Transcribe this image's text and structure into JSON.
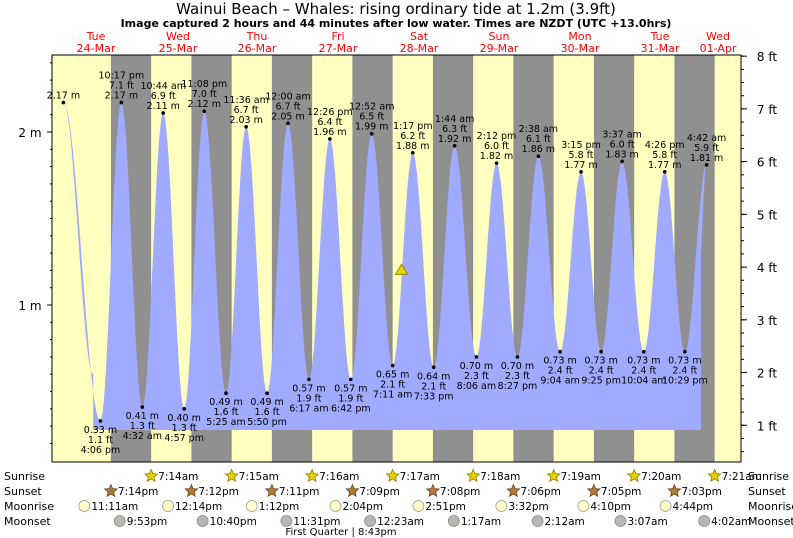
{
  "chart_data": {
    "type": "area",
    "title": "Wainui Beach – Whales: rising  ordinary tide at 1.2m (3.9ft)",
    "subtitle": "Image captured 2 hours and 44 minutes after low water. Times are NZDT (UTC +13.0hrs)",
    "left_axis": {
      "unit": "m",
      "ticks": [
        {
          "v": 1,
          "label": "1 m"
        },
        {
          "v": 2,
          "label": "2 m"
        }
      ]
    },
    "right_axis": {
      "unit": "ft",
      "ticks": [
        {
          "v": 1,
          "label": "1 ft"
        },
        {
          "v": 2,
          "label": "2 ft"
        },
        {
          "v": 3,
          "label": "3 ft"
        },
        {
          "v": 4,
          "label": "4 ft"
        },
        {
          "v": 5,
          "label": "5 ft"
        },
        {
          "v": 6,
          "label": "6 ft"
        },
        {
          "v": 7,
          "label": "7 ft"
        },
        {
          "v": 8,
          "label": "8 ft"
        }
      ]
    },
    "days": [
      {
        "dow": "Tue",
        "date": "24-Mar"
      },
      {
        "dow": "Wed",
        "date": "25-Mar"
      },
      {
        "dow": "Thu",
        "date": "26-Mar"
      },
      {
        "dow": "Fri",
        "date": "27-Mar"
      },
      {
        "dow": "Sat",
        "date": "28-Mar"
      },
      {
        "dow": "Sun",
        "date": "29-Mar"
      },
      {
        "dow": "Mon",
        "date": "30-Mar"
      },
      {
        "dow": "Tue",
        "date": "31-Mar"
      },
      {
        "dow": "Wed",
        "date": "01-Apr"
      }
    ],
    "tide_series": [
      {
        "type": "high",
        "time": "",
        "m": 2.17,
        "ft": "",
        "d": 0.21
      },
      {
        "type": "low",
        "time": "4:06 pm",
        "m": 0.33,
        "ft": "1.1 ft",
        "d": 0.67
      },
      {
        "type": "high",
        "time": "10:17 pm",
        "m": 2.17,
        "ft": "7.1 ft",
        "d": 0.93
      },
      {
        "type": "low",
        "time": "4:32 am",
        "m": 0.41,
        "ft": "1.3 ft",
        "d": 1.19
      },
      {
        "type": "high",
        "time": "10:44 am",
        "m": 2.11,
        "ft": "6.9 ft",
        "d": 1.45
      },
      {
        "type": "low",
        "time": "4:57 pm",
        "m": 0.4,
        "ft": "1.3 ft",
        "d": 1.71
      },
      {
        "type": "high",
        "time": "11:08 pm",
        "m": 2.12,
        "ft": "7.0 ft",
        "d": 1.96
      },
      {
        "type": "low",
        "time": "5:25 am",
        "m": 0.49,
        "ft": "1.6 ft",
        "d": 2.23
      },
      {
        "type": "high",
        "time": "11:36 am",
        "m": 2.03,
        "ft": "6.7 ft",
        "d": 2.48
      },
      {
        "type": "low",
        "time": "5:50 pm",
        "m": 0.49,
        "ft": "1.6 ft",
        "d": 2.74
      },
      {
        "type": "high",
        "time": "12:00 am",
        "m": 2.05,
        "ft": "6.7 ft",
        "d": 3.0
      },
      {
        "type": "low",
        "time": "6:17 am",
        "m": 0.57,
        "ft": "1.9 ft",
        "d": 3.26
      },
      {
        "type": "high",
        "time": "12:26 pm",
        "m": 1.96,
        "ft": "6.4 ft",
        "d": 3.52
      },
      {
        "type": "low",
        "time": "6:42 pm",
        "m": 0.57,
        "ft": "1.9 ft",
        "d": 3.78
      },
      {
        "type": "high",
        "time": "12:52 am",
        "m": 1.99,
        "ft": "6.5 ft",
        "d": 4.04
      },
      {
        "type": "low",
        "time": "7:11 am",
        "m": 0.65,
        "ft": "2.1 ft",
        "d": 4.3
      },
      {
        "type": "high",
        "time": "1:17 pm",
        "m": 1.88,
        "ft": "6.2 ft",
        "d": 4.55
      },
      {
        "type": "low",
        "time": "7:33 pm",
        "m": 0.64,
        "ft": "2.1 ft",
        "d": 4.81
      },
      {
        "type": "high",
        "time": "1:44 am",
        "m": 1.92,
        "ft": "6.3 ft",
        "d": 5.07
      },
      {
        "type": "low",
        "time": "8:06 am",
        "m": 0.7,
        "ft": "2.3 ft",
        "d": 5.34
      },
      {
        "type": "high",
        "time": "2:12 pm",
        "m": 1.82,
        "ft": "6.0 ft",
        "d": 5.59
      },
      {
        "type": "low",
        "time": "8:27 pm",
        "m": 0.7,
        "ft": "2.3 ft",
        "d": 5.85
      },
      {
        "type": "high",
        "time": "2:38 am",
        "m": 1.86,
        "ft": "6.1 ft",
        "d": 6.11
      },
      {
        "type": "low",
        "time": "9:04 am",
        "m": 0.73,
        "ft": "2.4 ft",
        "d": 6.38
      },
      {
        "type": "high",
        "time": "3:15 pm",
        "m": 1.77,
        "ft": "5.8 ft",
        "d": 6.64
      },
      {
        "type": "low",
        "time": "9:25 pm",
        "m": 0.73,
        "ft": "2.4 ft",
        "d": 6.89
      },
      {
        "type": "high",
        "time": "3:37 am",
        "m": 1.83,
        "ft": "6.0 ft",
        "d": 7.15
      },
      {
        "type": "low",
        "time": "10:04 am",
        "m": 0.73,
        "ft": "2.4 ft",
        "d": 7.42
      },
      {
        "type": "high",
        "time": "4:26 pm",
        "m": 1.77,
        "ft": "5.8 ft",
        "d": 7.68
      },
      {
        "type": "low",
        "time": "10:29 pm",
        "m": 0.73,
        "ft": "2.4 ft",
        "d": 7.93
      },
      {
        "type": "high",
        "time": "4:42 am",
        "m": 1.81,
        "ft": "5.9 ft",
        "d": 8.2
      }
    ],
    "current": {
      "m": 1.2,
      "d": 4.41
    },
    "sunrise": [
      {
        "d": 1.3,
        "time": "7:14am"
      },
      {
        "d": 2.3,
        "time": "7:15am"
      },
      {
        "d": 3.3,
        "time": "7:16am"
      },
      {
        "d": 4.3,
        "time": "7:17am"
      },
      {
        "d": 5.3,
        "time": "7:18am"
      },
      {
        "d": 6.3,
        "time": "7:19am"
      },
      {
        "d": 7.3,
        "time": "7:20am"
      },
      {
        "d": 8.3,
        "time": "7:21am"
      }
    ],
    "sunset": [
      {
        "d": 0.8,
        "time": "7:14pm"
      },
      {
        "d": 1.8,
        "time": "7:12pm"
      },
      {
        "d": 2.8,
        "time": "7:11pm"
      },
      {
        "d": 3.8,
        "time": "7:09pm"
      },
      {
        "d": 4.8,
        "time": "7:08pm"
      },
      {
        "d": 5.8,
        "time": "7:06pm"
      },
      {
        "d": 6.8,
        "time": "7:05pm"
      },
      {
        "d": 7.8,
        "time": "7:03pm"
      }
    ],
    "moonrise": [
      {
        "d": 0.47,
        "time": "11:11am"
      },
      {
        "d": 1.51,
        "time": "12:14pm"
      },
      {
        "d": 2.55,
        "time": "1:12pm"
      },
      {
        "d": 3.59,
        "time": "2:04pm"
      },
      {
        "d": 4.62,
        "time": "2:51pm"
      },
      {
        "d": 5.65,
        "time": "3:32pm"
      },
      {
        "d": 6.67,
        "time": "4:10pm"
      },
      {
        "d": 7.69,
        "time": "4:44pm"
      }
    ],
    "moonset": [
      {
        "d": 0.91,
        "time": "9:53pm"
      },
      {
        "d": 1.94,
        "time": "10:40pm"
      },
      {
        "d": 2.98,
        "time": "11:31pm"
      },
      {
        "d": 4.02,
        "time": "12:23am"
      },
      {
        "d": 5.06,
        "time": "1:17am"
      },
      {
        "d": 6.1,
        "time": "2:12am"
      },
      {
        "d": 7.13,
        "time": "3:07am"
      },
      {
        "d": 8.17,
        "time": "4:02am"
      }
    ],
    "row_labels": {
      "sunrise": "Sunrise",
      "sunset": "Sunset",
      "moonrise": "Moonrise",
      "moonset": "Moonset"
    },
    "moon_phase": {
      "label": "First Quarter | 8:43pm",
      "d": 3.7
    },
    "colors": {
      "day": "#ffffc0",
      "night": "#909090",
      "water": "#a0aaff",
      "day_label": "#ff0000",
      "title": "#000000",
      "sun": "#e6d200",
      "sunset": "#b07a3c"
    }
  }
}
